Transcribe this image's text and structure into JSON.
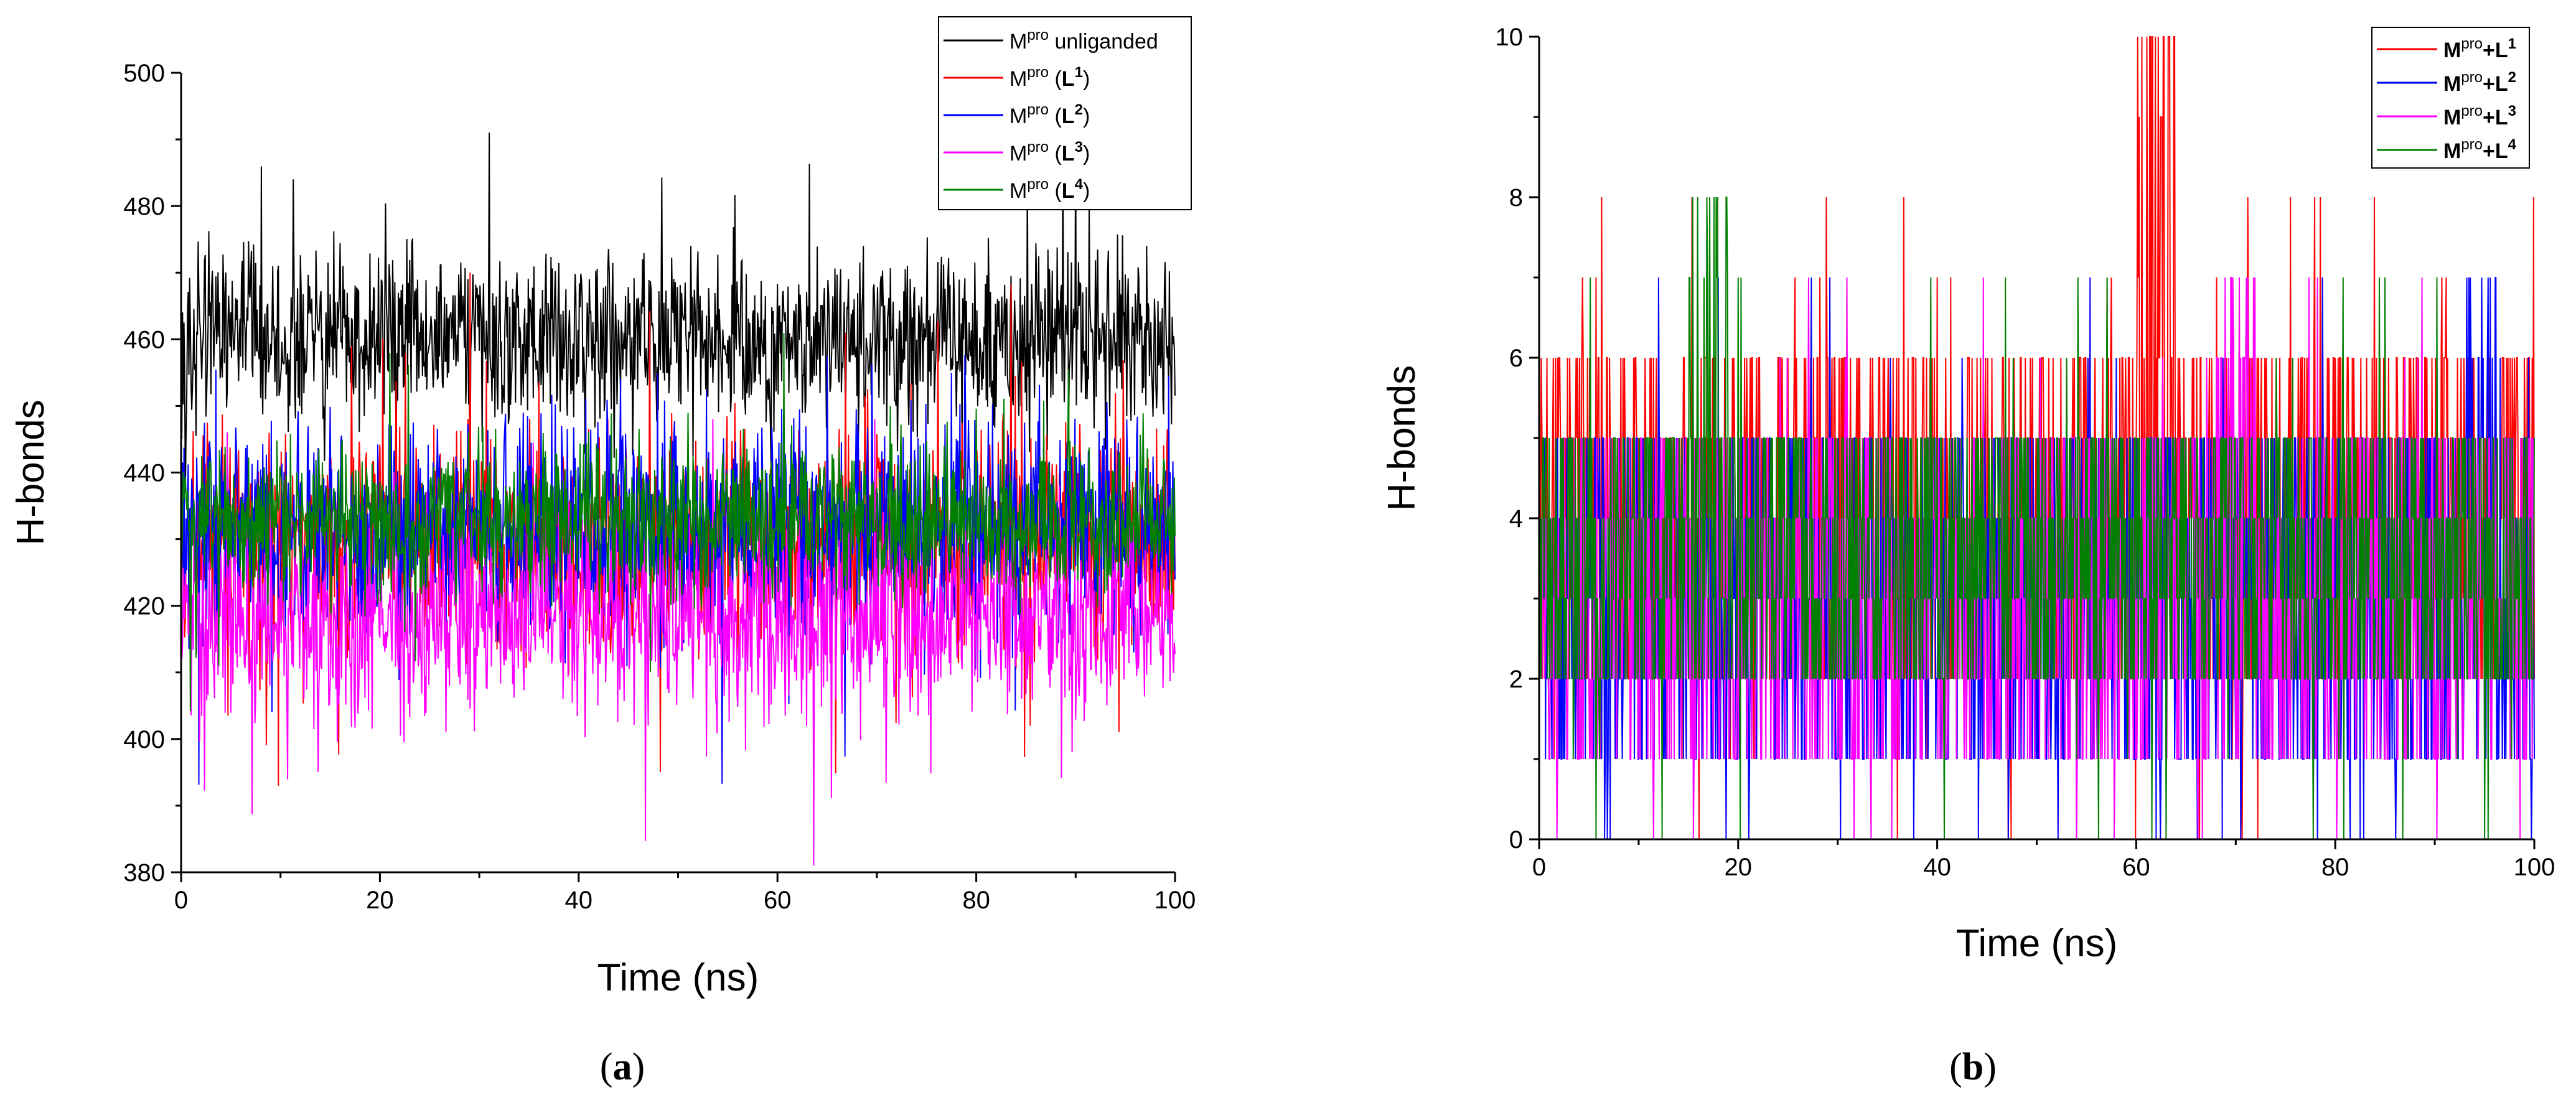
{
  "chart_data": [
    {
      "type": "line",
      "caption": "(a)",
      "xlabel": "Time (ns)",
      "ylabel": "H-bonds",
      "xlim": [
        0,
        100
      ],
      "ylim": [
        380,
        500
      ],
      "x_ticks": [
        0,
        20,
        40,
        60,
        80,
        100
      ],
      "y_ticks": [
        380,
        400,
        420,
        440,
        460,
        480,
        500
      ],
      "legend_position": "top-right",
      "series": [
        {
          "name": "Mpro unliganded",
          "legend_base": "M",
          "legend_sup": "pro",
          "legend_suffix": " unliganded",
          "legend_ligand": "",
          "legend_ligand_sup": "",
          "color": "#000000",
          "mean": 460,
          "spread": 8,
          "min": 437,
          "max": 491
        },
        {
          "name": "Mpro (L1)",
          "legend_base": "M",
          "legend_sup": "pro",
          "legend_suffix": " (",
          "legend_ligand": "L",
          "legend_ligand_sup": "1",
          "legend_end": ")",
          "color": "#ff0000",
          "mean": 430,
          "spread": 10,
          "min": 393,
          "max": 470
        },
        {
          "name": "Mpro (L2)",
          "legend_base": "M",
          "legend_sup": "pro",
          "legend_suffix": " (",
          "legend_ligand": "L",
          "legend_ligand_sup": "2",
          "legend_end": ")",
          "color": "#0000ff",
          "mean": 432,
          "spread": 10,
          "min": 391,
          "max": 470
        },
        {
          "name": "Mpro (L3)",
          "legend_base": "M",
          "legend_sup": "pro",
          "legend_suffix": " (",
          "legend_ligand": "L",
          "legend_ligand_sup": "3",
          "legend_end": ")",
          "color": "#ff00ff",
          "mean": 418,
          "spread": 9,
          "min": 381,
          "max": 448
        },
        {
          "name": "Mpro (L4)",
          "legend_base": "M",
          "legend_sup": "pro",
          "legend_suffix": " (",
          "legend_ligand": "L",
          "legend_ligand_sup": "4",
          "legend_end": ")",
          "color": "#008000",
          "mean": 433,
          "spread": 7,
          "min": 398,
          "max": 462
        }
      ]
    },
    {
      "type": "line",
      "caption": "(b)",
      "xlabel": "Time (ns)",
      "ylabel": "H-bonds",
      "xlim": [
        0,
        100
      ],
      "ylim": [
        0,
        10
      ],
      "x_ticks": [
        0,
        20,
        40,
        60,
        80,
        100
      ],
      "y_ticks": [
        0,
        2,
        4,
        6,
        8,
        10
      ],
      "legend_position": "top-right",
      "series": [
        {
          "name": "Mpro+L1",
          "legend_base": "M",
          "legend_sup": "pro",
          "legend_suffix": "+",
          "legend_ligand": "L",
          "legend_ligand_sup": "1",
          "color": "#ff0000",
          "typical_range": [
            2,
            6
          ],
          "max": 10,
          "max_at": 62
        },
        {
          "name": "Mpro+L2",
          "legend_base": "M",
          "legend_sup": "pro",
          "legend_suffix": "+",
          "legend_ligand": "L",
          "legend_ligand_sup": "2",
          "color": "#0000ff",
          "typical_range": [
            1,
            5
          ],
          "max": 7,
          "max_at": 95
        },
        {
          "name": "Mpro+L3",
          "legend_base": "M",
          "legend_sup": "pro",
          "legend_suffix": "+",
          "legend_ligand": "L",
          "legend_ligand_sup": "3",
          "color": "#ff00ff",
          "typical_range": [
            1,
            5
          ],
          "max": 7,
          "max_at": 70
        },
        {
          "name": "Mpro+L4",
          "legend_base": "M",
          "legend_sup": "pro",
          "legend_suffix": "+",
          "legend_ligand": "L",
          "legend_ligand_sup": "4",
          "color": "#008000",
          "typical_range": [
            2,
            5
          ],
          "max": 8,
          "max_at": 17
        }
      ]
    }
  ]
}
